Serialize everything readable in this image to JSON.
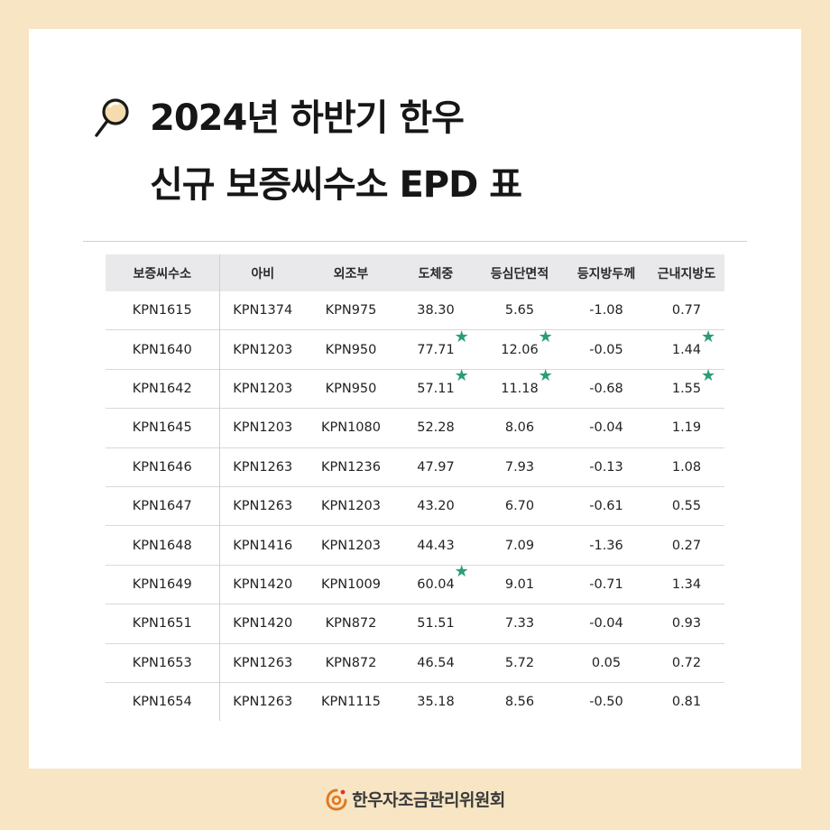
{
  "title": {
    "line1": "2024년 하반기 한우",
    "line2": "신규 보증씨수소 EPD 표"
  },
  "table": {
    "headers": [
      "보증씨수소",
      "아비",
      "외조부",
      "도체중",
      "등심단면적",
      "등지방두께",
      "근내지방도"
    ],
    "rows": [
      {
        "cells": [
          "KPN1615",
          "KPN1374",
          "KPN975",
          "38.30",
          "5.65",
          "-1.08",
          "0.77"
        ],
        "stars": [
          false,
          false,
          false,
          false,
          false,
          false,
          false
        ]
      },
      {
        "cells": [
          "KPN1640",
          "KPN1203",
          "KPN950",
          "77.71",
          "12.06",
          "-0.05",
          "1.44"
        ],
        "stars": [
          false,
          false,
          false,
          true,
          true,
          false,
          true
        ]
      },
      {
        "cells": [
          "KPN1642",
          "KPN1203",
          "KPN950",
          "57.11",
          "11.18",
          "-0.68",
          "1.55"
        ],
        "stars": [
          false,
          false,
          false,
          true,
          true,
          false,
          true
        ]
      },
      {
        "cells": [
          "KPN1645",
          "KPN1203",
          "KPN1080",
          "52.28",
          "8.06",
          "-0.04",
          "1.19"
        ],
        "stars": [
          false,
          false,
          false,
          false,
          false,
          false,
          false
        ]
      },
      {
        "cells": [
          "KPN1646",
          "KPN1263",
          "KPN1236",
          "47.97",
          "7.93",
          "-0.13",
          "1.08"
        ],
        "stars": [
          false,
          false,
          false,
          false,
          false,
          false,
          false
        ]
      },
      {
        "cells": [
          "KPN1647",
          "KPN1263",
          "KPN1203",
          "43.20",
          "6.70",
          "-0.61",
          "0.55"
        ],
        "stars": [
          false,
          false,
          false,
          false,
          false,
          false,
          false
        ]
      },
      {
        "cells": [
          "KPN1648",
          "KPN1416",
          "KPN1203",
          "44.43",
          "7.09",
          "-1.36",
          "0.27"
        ],
        "stars": [
          false,
          false,
          false,
          false,
          false,
          false,
          false
        ]
      },
      {
        "cells": [
          "KPN1649",
          "KPN1420",
          "KPN1009",
          "60.04",
          "9.01",
          "-0.71",
          "1.34"
        ],
        "stars": [
          false,
          false,
          false,
          true,
          false,
          false,
          false
        ]
      },
      {
        "cells": [
          "KPN1651",
          "KPN1420",
          "KPN872",
          "51.51",
          "7.33",
          "-0.04",
          "0.93"
        ],
        "stars": [
          false,
          false,
          false,
          false,
          false,
          false,
          false
        ]
      },
      {
        "cells": [
          "KPN1653",
          "KPN1263",
          "KPN872",
          "46.54",
          "5.72",
          "0.05",
          "0.72"
        ],
        "stars": [
          false,
          false,
          false,
          false,
          false,
          false,
          false
        ]
      },
      {
        "cells": [
          "KPN1654",
          "KPN1263",
          "KPN1115",
          "35.18",
          "8.56",
          "-0.50",
          "0.81"
        ],
        "stars": [
          false,
          false,
          false,
          false,
          false,
          false,
          false
        ]
      }
    ],
    "star_glyph": "★",
    "star_color": "#2a9d77"
  },
  "footer": {
    "org_name": "한우자조금관리위원회",
    "logo_icon": "hanwoo-logo-icon",
    "logo_color": "#e07a1f"
  },
  "colors": {
    "background": "#f7e5c4",
    "card": "#ffffff",
    "header_bg": "#e9e9eb"
  }
}
